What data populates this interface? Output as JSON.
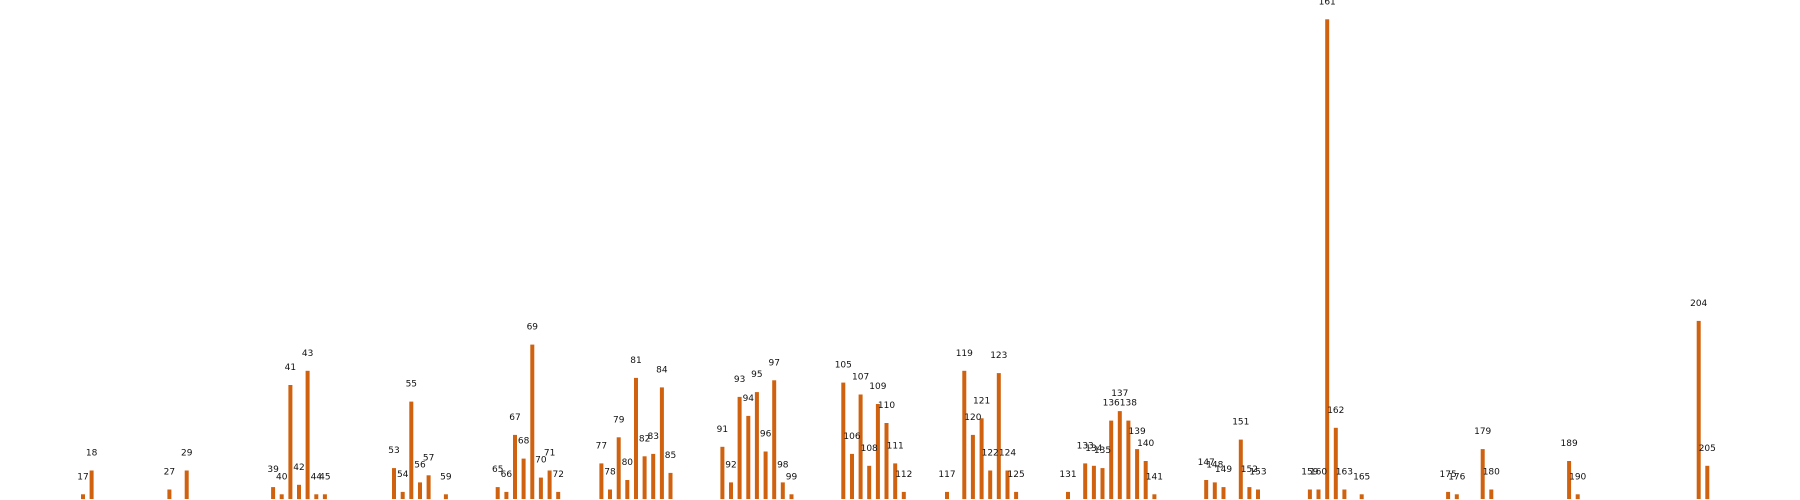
{
  "chart_data": {
    "type": "bar",
    "title": "",
    "xlabel": "",
    "ylabel": "",
    "color": "#d0620f",
    "show_axes": false,
    "grid": false,
    "legend": "none",
    "points": [
      {
        "x": 17,
        "v": 1
      },
      {
        "x": 18,
        "v": 6
      },
      {
        "x": 27,
        "v": 2
      },
      {
        "x": 29,
        "v": 6
      },
      {
        "x": 39,
        "v": 2.5
      },
      {
        "x": 40,
        "v": 1
      },
      {
        "x": 41,
        "v": 24
      },
      {
        "x": 42,
        "v": 3
      },
      {
        "x": 43,
        "v": 27
      },
      {
        "x": 44,
        "v": 1
      },
      {
        "x": 45,
        "v": 1
      },
      {
        "x": 53,
        "v": 6.5
      },
      {
        "x": 54,
        "v": 1.5
      },
      {
        "x": 55,
        "v": 20.5
      },
      {
        "x": 56,
        "v": 3.5
      },
      {
        "x": 57,
        "v": 5
      },
      {
        "x": 59,
        "v": 1
      },
      {
        "x": 65,
        "v": 2.5
      },
      {
        "x": 66,
        "v": 1.5
      },
      {
        "x": 67,
        "v": 13.5
      },
      {
        "x": 68,
        "v": 8.5
      },
      {
        "x": 69,
        "v": 32.5
      },
      {
        "x": 70,
        "v": 4.5
      },
      {
        "x": 71,
        "v": 6
      },
      {
        "x": 72,
        "v": 1.5
      },
      {
        "x": 77,
        "v": 7.5
      },
      {
        "x": 78,
        "v": 2
      },
      {
        "x": 79,
        "v": 13
      },
      {
        "x": 80,
        "v": 4
      },
      {
        "x": 81,
        "v": 25.5
      },
      {
        "x": 82,
        "v": 9
      },
      {
        "x": 83,
        "v": 9.5
      },
      {
        "x": 84,
        "v": 23.5
      },
      {
        "x": 85,
        "v": 5.5
      },
      {
        "x": 91,
        "v": 11
      },
      {
        "x": 92,
        "v": 3.5
      },
      {
        "x": 93,
        "v": 21.5
      },
      {
        "x": 94,
        "v": 17.5
      },
      {
        "x": 95,
        "v": 22.5
      },
      {
        "x": 96,
        "v": 10
      },
      {
        "x": 97,
        "v": 25
      },
      {
        "x": 98,
        "v": 3.5
      },
      {
        "x": 99,
        "v": 1
      },
      {
        "x": 105,
        "v": 24.5
      },
      {
        "x": 106,
        "v": 9.5
      },
      {
        "x": 107,
        "v": 22
      },
      {
        "x": 108,
        "v": 7
      },
      {
        "x": 109,
        "v": 20
      },
      {
        "x": 110,
        "v": 16
      },
      {
        "x": 111,
        "v": 7.5
      },
      {
        "x": 112,
        "v": 1.5
      },
      {
        "x": 117,
        "v": 1.5
      },
      {
        "x": 119,
        "v": 27
      },
      {
        "x": 120,
        "v": 13.5
      },
      {
        "x": 121,
        "v": 17
      },
      {
        "x": 122,
        "v": 6
      },
      {
        "x": 123,
        "v": 26.5
      },
      {
        "x": 124,
        "v": 6
      },
      {
        "x": 125,
        "v": 1.5
      },
      {
        "x": 131,
        "v": 1.5
      },
      {
        "x": 133,
        "v": 7.5
      },
      {
        "x": 134,
        "v": 7
      },
      {
        "x": 135,
        "v": 6.5
      },
      {
        "x": 136,
        "v": 16.5
      },
      {
        "x": 137,
        "v": 18.5
      },
      {
        "x": 138,
        "v": 16.5
      },
      {
        "x": 139,
        "v": 10.5
      },
      {
        "x": 140,
        "v": 8
      },
      {
        "x": 141,
        "v": 1
      },
      {
        "x": 147,
        "v": 4
      },
      {
        "x": 148,
        "v": 3.5
      },
      {
        "x": 149,
        "v": 2.5
      },
      {
        "x": 151,
        "v": 12.5
      },
      {
        "x": 152,
        "v": 2.5
      },
      {
        "x": 153,
        "v": 2
      },
      {
        "x": 159,
        "v": 2
      },
      {
        "x": 160,
        "v": 2
      },
      {
        "x": 161,
        "v": 101
      },
      {
        "x": 162,
        "v": 15
      },
      {
        "x": 163,
        "v": 2
      },
      {
        "x": 165,
        "v": 1
      },
      {
        "x": 175,
        "v": 1.5
      },
      {
        "x": 176,
        "v": 1
      },
      {
        "x": 179,
        "v": 10.5
      },
      {
        "x": 180,
        "v": 2
      },
      {
        "x": 189,
        "v": 8
      },
      {
        "x": 190,
        "v": 1
      },
      {
        "x": 204,
        "v": 37.5
      },
      {
        "x": 205,
        "v": 7
      }
    ],
    "labels": [
      "17",
      "18",
      "27",
      "29",
      "39",
      "40",
      "41",
      "42",
      "43",
      "44",
      "45",
      "53",
      "54",
      "55",
      "56",
      "57",
      "59",
      "65",
      "66",
      "67",
      "68",
      "69",
      "70",
      "71",
      "72",
      "77",
      "78",
      "79",
      "80",
      "81",
      "82",
      "83",
      "84",
      "85",
      "91",
      "92",
      "93",
      "94",
      "95",
      "96",
      "97",
      "98",
      "99",
      "105",
      "106",
      "107",
      "108",
      "109",
      "110",
      "111",
      "112",
      "117",
      "119",
      "120",
      "121",
      "122",
      "123",
      "124",
      "125",
      "131",
      "133",
      "134",
      "135",
      "136",
      "137",
      "138",
      "139",
      "140",
      "141",
      "147",
      "148",
      "149",
      "151",
      "152",
      "153",
      "159",
      "160",
      "161",
      "162",
      "163",
      "165",
      "175",
      "176",
      "179",
      "180",
      "189",
      "190",
      "204",
      "205"
    ]
  }
}
